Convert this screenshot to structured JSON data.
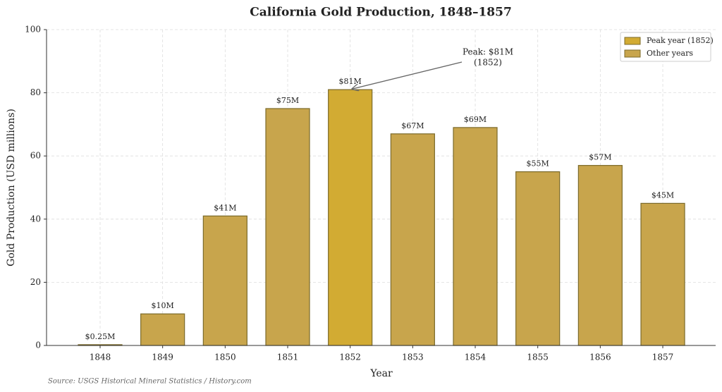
{
  "chart_data": {
    "type": "bar",
    "title": "California Gold Production, 1848–1857",
    "xlabel": "Year",
    "ylabel": "Gold Production (USD millions)",
    "categories": [
      "1848",
      "1849",
      "1850",
      "1851",
      "1852",
      "1853",
      "1854",
      "1855",
      "1856",
      "1857"
    ],
    "series": [
      {
        "name": "Peak year (1852)",
        "color": "#d2ab33",
        "values": [
          null,
          null,
          null,
          null,
          81,
          null,
          null,
          null,
          null,
          null
        ],
        "value_labels": [
          null,
          null,
          null,
          null,
          "$81M",
          null,
          null,
          null,
          null,
          null
        ]
      },
      {
        "name": "Other years",
        "color": "#c8a54c",
        "values": [
          0.25,
          10,
          41,
          75,
          null,
          67,
          69,
          55,
          57,
          45
        ],
        "value_labels": [
          "$0.25M",
          "$10M",
          "$41M",
          "$75M",
          null,
          "$67M",
          "$69M",
          "$55M",
          "$57M",
          "$45M"
        ]
      }
    ],
    "ylim": [
      0,
      100
    ],
    "yticks": [
      0,
      20,
      40,
      60,
      80,
      100
    ],
    "grid": true,
    "legend": "upper right",
    "annotation": {
      "text": [
        "Peak: $81M",
        "(1852)"
      ],
      "target": 4
    },
    "source": "Source: USGS Historical Mineral Statistics / History.com"
  }
}
